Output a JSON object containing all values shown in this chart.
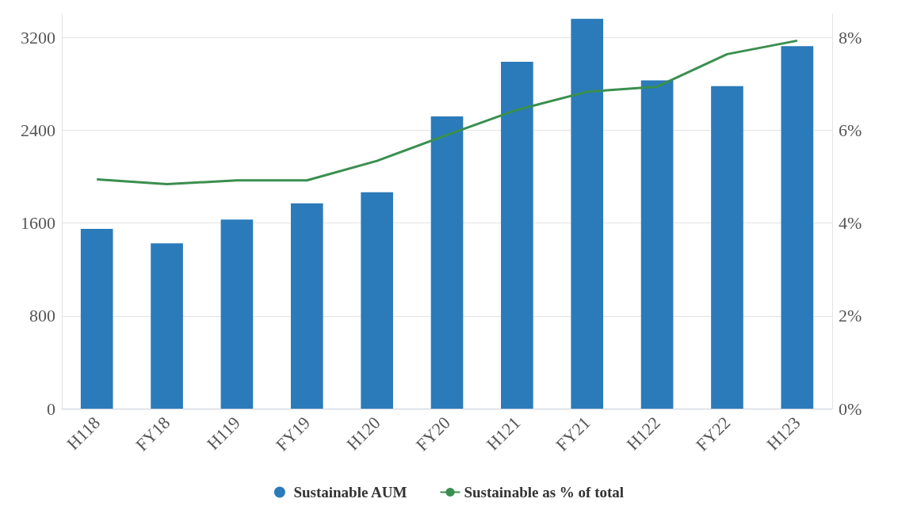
{
  "chart_data": {
    "type": "bar",
    "categories": [
      "H118",
      "FY18",
      "H119",
      "FY19",
      "H120",
      "FY20",
      "H121",
      "FY21",
      "H122",
      "FY22",
      "H123"
    ],
    "series": [
      {
        "name": "Sustainable AUM",
        "color": "#2b7bba",
        "values": [
          1550,
          1425,
          1630,
          1770,
          1865,
          2520,
          2990,
          3360,
          2830,
          2780,
          3125
        ]
      },
      {
        "name": "Sustainable as % of total",
        "type": "line",
        "axis": "y2",
        "color": "#3a8f4f",
        "values": [
          4.94,
          4.84,
          4.92,
          4.92,
          5.34,
          5.9,
          6.44,
          6.83,
          6.94,
          7.64,
          7.93
        ]
      }
    ],
    "ylim": [
      0,
      3400
    ],
    "yticks": [
      0,
      800,
      1600,
      2400,
      3200
    ],
    "y2lim": [
      0,
      8.5
    ],
    "y2ticks": [
      {
        "value": 0,
        "label": "0%"
      },
      {
        "value": 2,
        "label": "2%"
      },
      {
        "value": 4,
        "label": "4%"
      },
      {
        "value": 6,
        "label": "6%"
      },
      {
        "value": 8,
        "label": "8%"
      }
    ],
    "grid": "y",
    "legend": "bottom",
    "marker": "none"
  }
}
